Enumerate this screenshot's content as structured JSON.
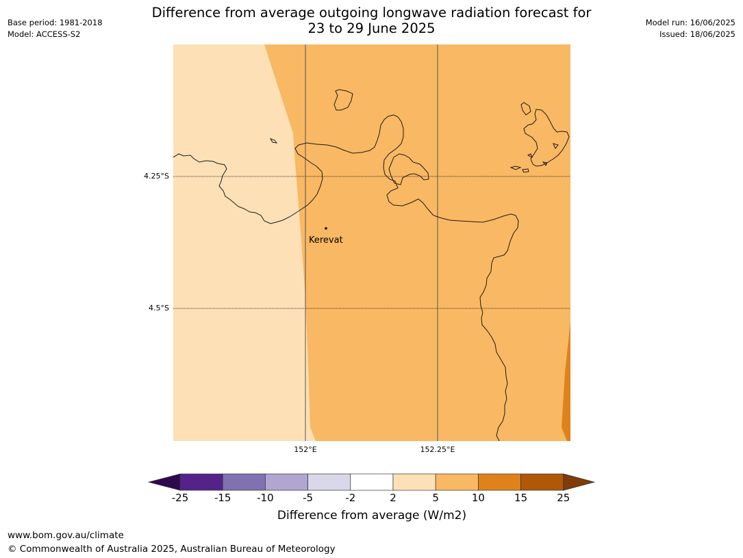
{
  "title": {
    "line1": "Difference from average outgoing longwave radiation forecast for",
    "line2": "23 to 29 June 2025"
  },
  "meta": {
    "base_period": "Base period: 1981-2018",
    "model": "Model: ACCESS-S2",
    "model_run": "Model run: 16/06/2025",
    "issued": "Issued: 18/06/2025"
  },
  "map": {
    "lat_labels": [
      "4.25°S",
      "4.5°S"
    ],
    "lon_labels": [
      "152°E",
      "152.25°E"
    ],
    "place": "Kerevat"
  },
  "colorbar": {
    "title": "Difference from average (W/m2)",
    "ticks": [
      "-25",
      "-15",
      "-10",
      "-5",
      "-2",
      "2",
      "5",
      "10",
      "15",
      "25"
    ],
    "colors": {
      "extend_low": "#2d0a4e",
      "bins": [
        "#55228a",
        "#8071b0",
        "#b0a6d1",
        "#d8d8ea",
        "#ffffff",
        "#fde0b6",
        "#f9b863",
        "#e0821c",
        "#b05708"
      ],
      "extend_high": "#7f3b0a"
    }
  },
  "footer": {
    "url": "www.bom.gov.au/climate",
    "copyright": "© Commonwealth of Australia 2025, Australian Bureau of Meteorology"
  }
}
